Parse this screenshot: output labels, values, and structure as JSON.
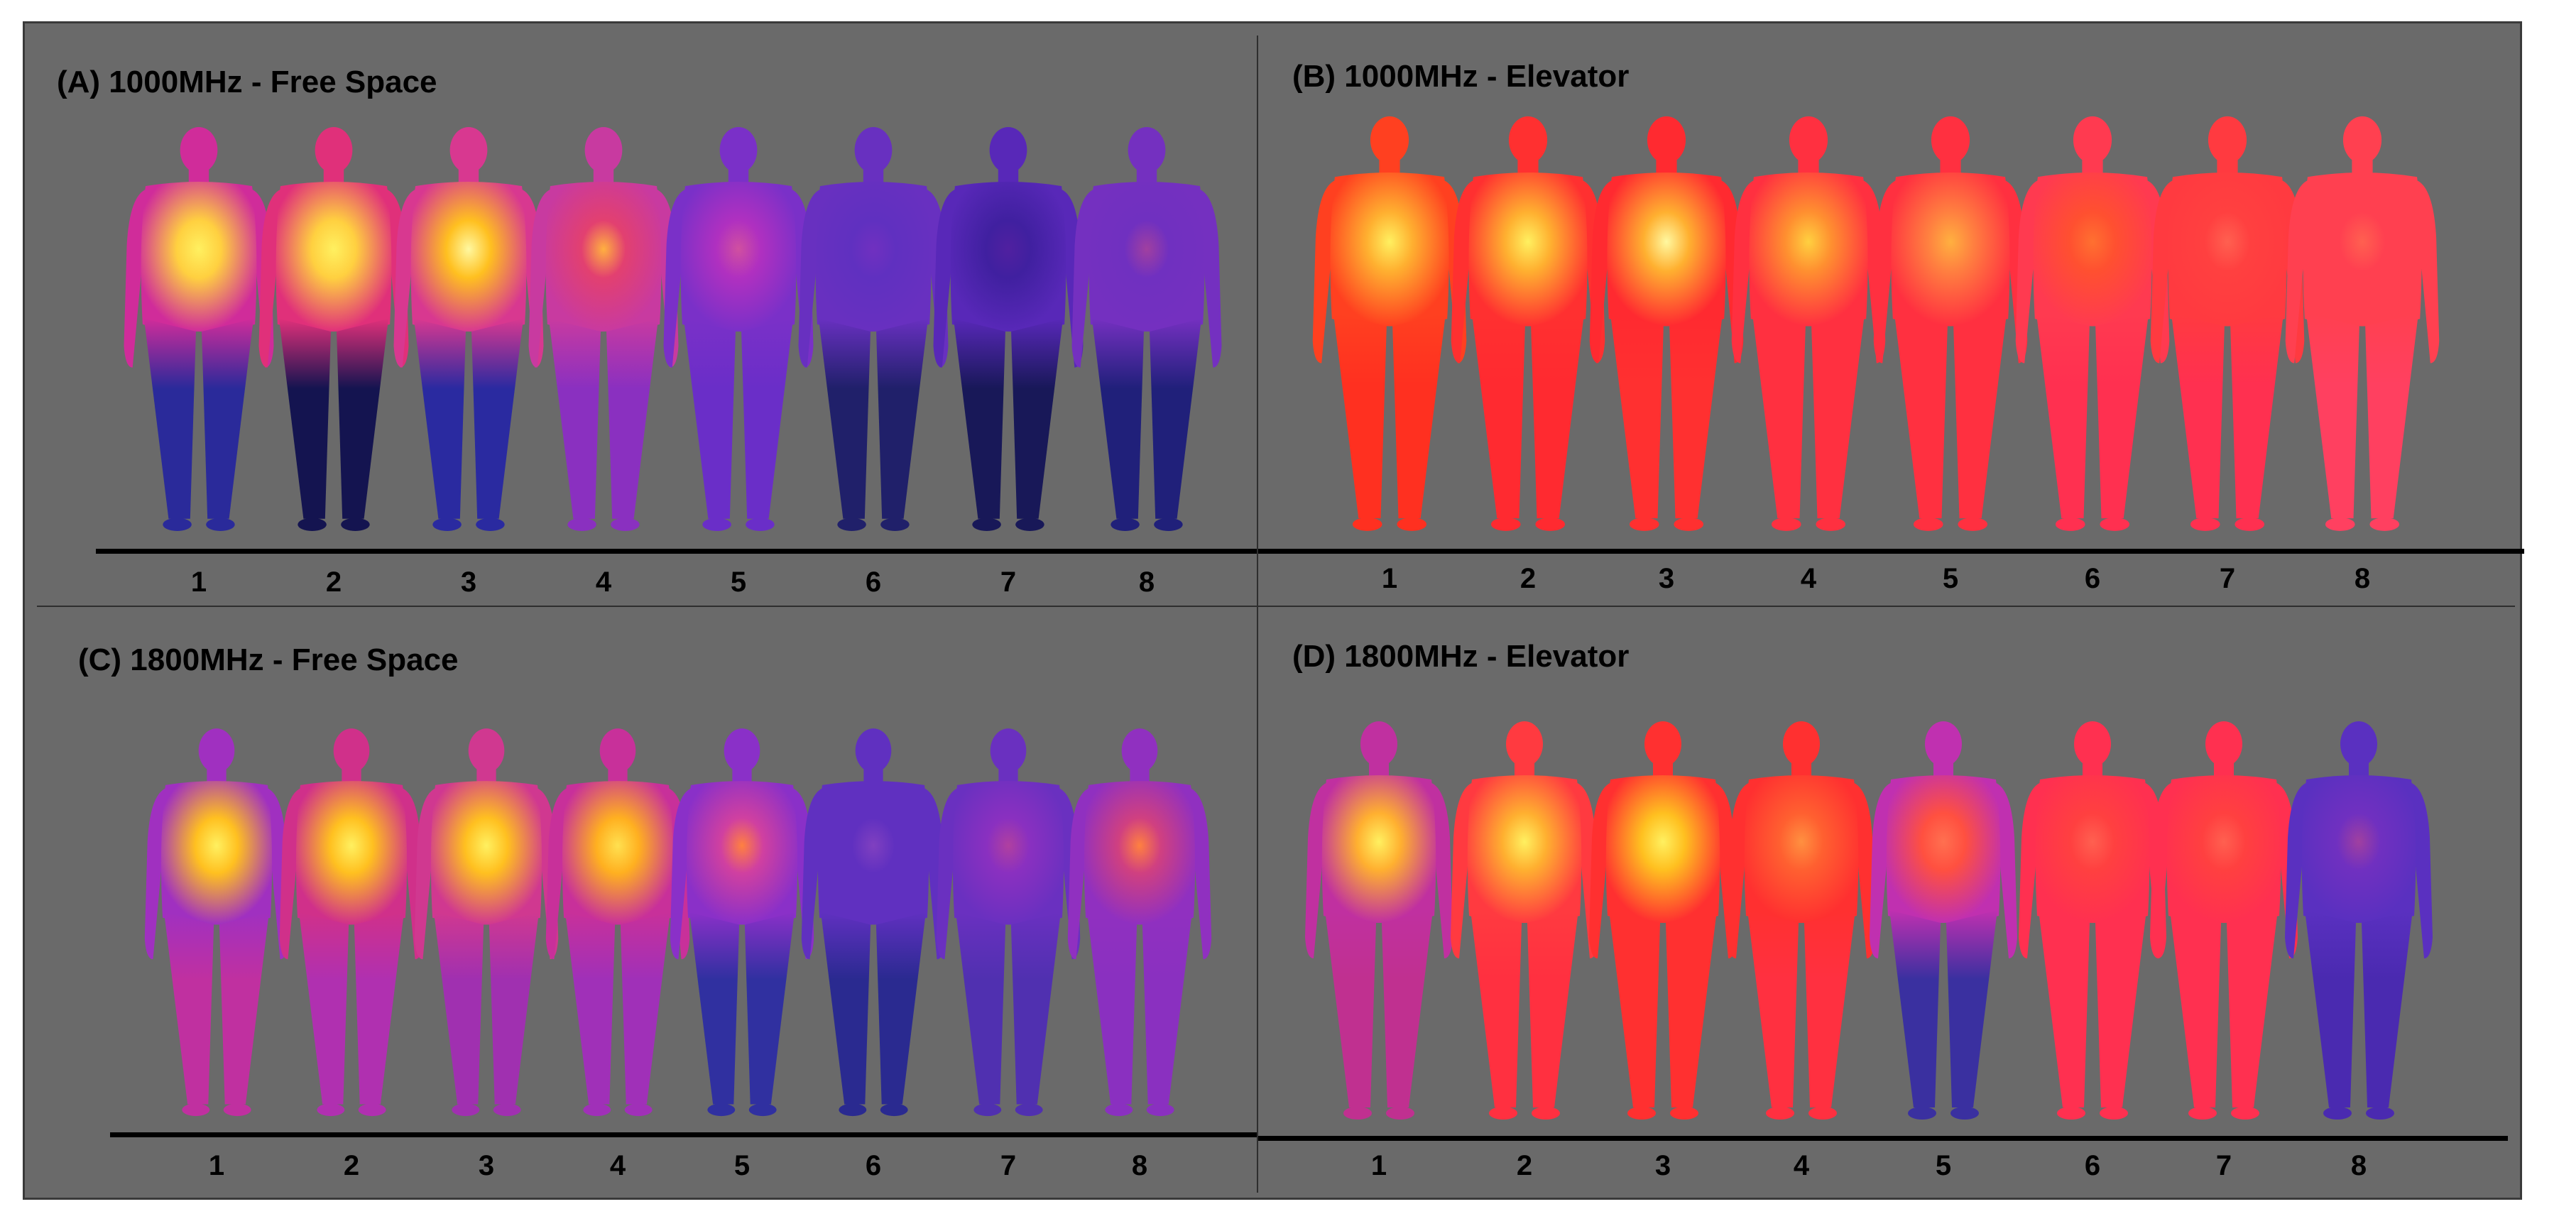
{
  "panels": [
    {
      "id": "A",
      "title": "(A) 1000MHz - Free Space",
      "labels": [
        "1",
        "2",
        "3",
        "4",
        "5",
        "6",
        "7",
        "8"
      ],
      "colors": {
        "torso": [
          "#ffd040",
          "#ffd040",
          "#ffc020",
          "#e24070",
          "#b030c0",
          "#6030c0",
          "#4020a0",
          "#7030c0"
        ],
        "upper": [
          "#d02c9a",
          "#e0307a",
          "#d83890",
          "#c83aa0",
          "#7a30c8",
          "#6830c0",
          "#5828b8",
          "#7430c0"
        ],
        "legs": [
          "#2a2a9a",
          "#141450",
          "#2a2aa0",
          "#8a30c0",
          "#6a2ec8",
          "#20206a",
          "#181858",
          "#20207a"
        ],
        "hot": [
          "#fff060",
          "#fff060",
          "#fff8a0",
          "#ffb040",
          "#d050a0",
          "#7030c0",
          "#5020a0",
          "#a040a0"
        ]
      }
    },
    {
      "id": "B",
      "title": "(B) 1000MHz - Elevator",
      "labels": [
        "1",
        "2",
        "3",
        "4",
        "5",
        "6",
        "7",
        "8"
      ],
      "colors": {
        "torso": [
          "#ffb030",
          "#ffb030",
          "#ffb030",
          "#ff9030",
          "#ff8040",
          "#ff5030",
          "#ff4040",
          "#ff4050"
        ],
        "upper": [
          "#ff4020",
          "#ff3030",
          "#ff2a30",
          "#ff3040",
          "#ff3040",
          "#ff3a50",
          "#ff3a40",
          "#ff4050"
        ],
        "legs": [
          "#ff3020",
          "#ff2a30",
          "#ff3030",
          "#ff3040",
          "#ff3040",
          "#ff3050",
          "#ff3050",
          "#ff4060"
        ],
        "hot": [
          "#fff060",
          "#fff060",
          "#fff8a0",
          "#ffd040",
          "#ffb040",
          "#ff7030",
          "#ff6050",
          "#ff6050"
        ]
      }
    },
    {
      "id": "C",
      "title": "(C) 1800MHz - Free Space",
      "labels": [
        "1",
        "2",
        "3",
        "4",
        "5",
        "6",
        "7",
        "8"
      ],
      "colors": {
        "torso": [
          "#ffc020",
          "#ffc020",
          "#ffc020",
          "#ffb020",
          "#d040a0",
          "#6030c0",
          "#8a30c0",
          "#d04080"
        ],
        "upper": [
          "#a030c0",
          "#d0308a",
          "#d03890",
          "#c8309a",
          "#8a30c8",
          "#6030c0",
          "#6a30c0",
          "#9030c0"
        ],
        "legs": [
          "#c030a0",
          "#b030b0",
          "#a030b0",
          "#a030b8",
          "#3030a0",
          "#2a2a90",
          "#5030b0",
          "#8a30c0"
        ],
        "hot": [
          "#fff060",
          "#fff060",
          "#fff060",
          "#ffe050",
          "#ff8040",
          "#8040c0",
          "#b040a0",
          "#ff8040"
        ]
      }
    },
    {
      "id": "D",
      "title": "(D) 1800MHz - Elevator",
      "labels": [
        "1",
        "2",
        "3",
        "4",
        "5",
        "6",
        "7",
        "8"
      ],
      "colors": {
        "torso": [
          "#ffb030",
          "#ffb030",
          "#ffc020",
          "#ff6030",
          "#ff5040",
          "#ff4040",
          "#ff4040",
          "#7030c0"
        ],
        "upper": [
          "#c030a0",
          "#ff3a40",
          "#ff3030",
          "#ff3030",
          "#c030b0",
          "#ff3050",
          "#ff3050",
          "#5a30c0"
        ],
        "legs": [
          "#c03090",
          "#ff3040",
          "#ff3030",
          "#ff3040",
          "#3a30a0",
          "#ff3050",
          "#ff3050",
          "#4a2ab0"
        ],
        "hot": [
          "#fff060",
          "#fff060",
          "#fff060",
          "#ff9040",
          "#ff7050",
          "#ff6050",
          "#ff6050",
          "#a040a0"
        ]
      }
    }
  ]
}
